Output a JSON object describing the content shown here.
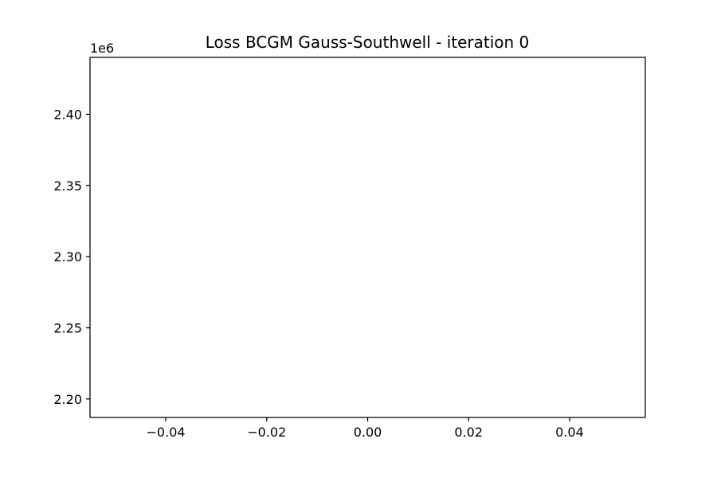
{
  "chart_data": {
    "type": "line",
    "title": "Loss BCGM Gauss-Southwell - iteration 0",
    "xlabel": "",
    "ylabel": "",
    "xlim": [
      -0.055,
      0.055
    ],
    "ylim": [
      2.187,
      2.44
    ],
    "y_offset_label": "1e6",
    "x_ticks": [
      {
        "value": -0.04,
        "label": "−0.04"
      },
      {
        "value": -0.02,
        "label": "−0.02"
      },
      {
        "value": 0.0,
        "label": "0.00"
      },
      {
        "value": 0.02,
        "label": "0.02"
      },
      {
        "value": 0.04,
        "label": "0.04"
      }
    ],
    "y_ticks": [
      {
        "value": 2.4,
        "label": "2.40"
      },
      {
        "value": 2.35,
        "label": "2.35"
      },
      {
        "value": 2.3,
        "label": "2.30"
      },
      {
        "value": 2.25,
        "label": "2.25"
      },
      {
        "value": 2.2,
        "label": "2.20"
      }
    ],
    "series": [
      {
        "x": [],
        "y": []
      }
    ],
    "grid": false,
    "legend": false
  }
}
